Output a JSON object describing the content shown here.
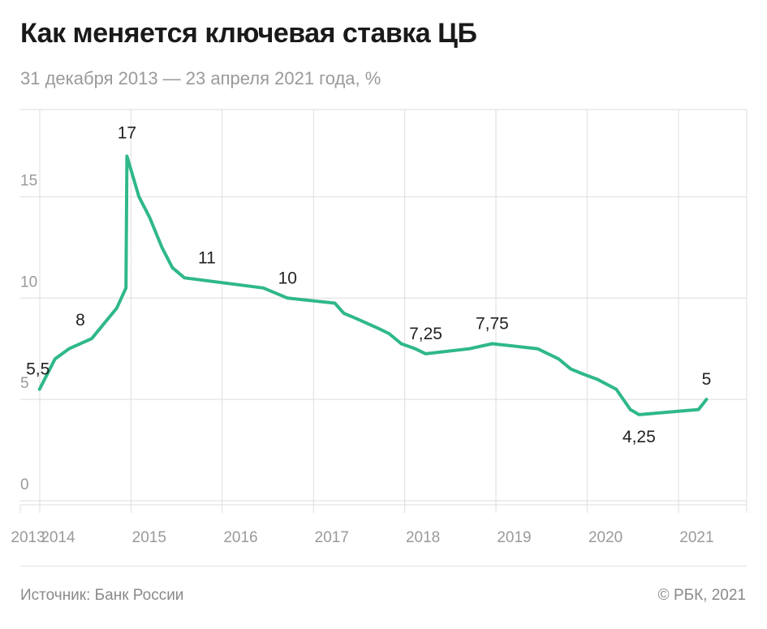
{
  "header": {
    "title": "Как меняется ключевая ставка ЦБ",
    "subtitle": "31 декабря 2013 — 23 апреля 2021 года, %"
  },
  "footer": {
    "source": "Источник: Банк России",
    "copyright": "© РБК, 2021"
  },
  "colors": {
    "line": "#2fb88a",
    "grid": "#dedede",
    "tick": "#9a9a9a"
  },
  "chart_data": {
    "type": "line",
    "title": "Как меняется ключевая ставка ЦБ",
    "subtitle": "31 декабря 2013 — 23 апреля 2021 года, %",
    "xlabel": "",
    "ylabel": "",
    "ylim": [
      0,
      20
    ],
    "y_ticks": [
      0,
      5,
      10,
      15
    ],
    "x_tick_labels": [
      "2013",
      "2014",
      "2015",
      "2016",
      "2017",
      "2018",
      "2019",
      "2020",
      "2021"
    ],
    "grid": true,
    "series": [
      {
        "x": [
          "2013-12-31",
          "2014-03-03",
          "2014-04-28",
          "2014-07-28",
          "2014-11-05",
          "2014-12-12",
          "2014-12-16",
          "2015-02-02",
          "2015-03-16",
          "2015-05-05",
          "2015-06-16",
          "2015-08-03",
          "2016-06-14",
          "2016-09-19",
          "2017-03-27",
          "2017-05-02",
          "2017-06-19",
          "2017-09-18",
          "2017-10-30",
          "2017-12-18",
          "2018-02-12",
          "2018-03-26",
          "2018-09-17",
          "2018-12-17",
          "2019-06-17",
          "2019-07-29",
          "2019-09-09",
          "2019-10-28",
          "2019-12-16",
          "2020-02-10",
          "2020-04-27",
          "2020-06-22",
          "2020-07-27",
          "2021-03-22",
          "2021-04-23"
        ],
        "y": [
          5.5,
          7,
          7.5,
          8,
          9.5,
          10.5,
          17,
          15,
          14,
          12.5,
          11.5,
          11,
          10.5,
          10,
          9.75,
          9.25,
          9,
          8.5,
          8.25,
          7.75,
          7.5,
          7.25,
          7.5,
          7.75,
          7.5,
          7.25,
          7,
          6.5,
          6.25,
          6,
          5.5,
          4.5,
          4.25,
          4.5,
          5
        ]
      }
    ],
    "annotations": [
      {
        "x": "2013-12-31",
        "y": 5.5,
        "text": "5,5"
      },
      {
        "x": "2014-07-28",
        "y": 8,
        "text": "8"
      },
      {
        "x": "2014-12-16",
        "y": 17,
        "text": "17"
      },
      {
        "x": "2015-11-01",
        "y": 11,
        "text": "11"
      },
      {
        "x": "2016-09-19",
        "y": 10,
        "text": "10"
      },
      {
        "x": "2018-03-26",
        "y": 7.25,
        "text": "7,25"
      },
      {
        "x": "2018-12-17",
        "y": 7.75,
        "text": "7,75"
      },
      {
        "x": "2020-07-27",
        "y": 4.25,
        "text": "4,25"
      },
      {
        "x": "2021-04-23",
        "y": 5,
        "text": "5"
      }
    ]
  }
}
